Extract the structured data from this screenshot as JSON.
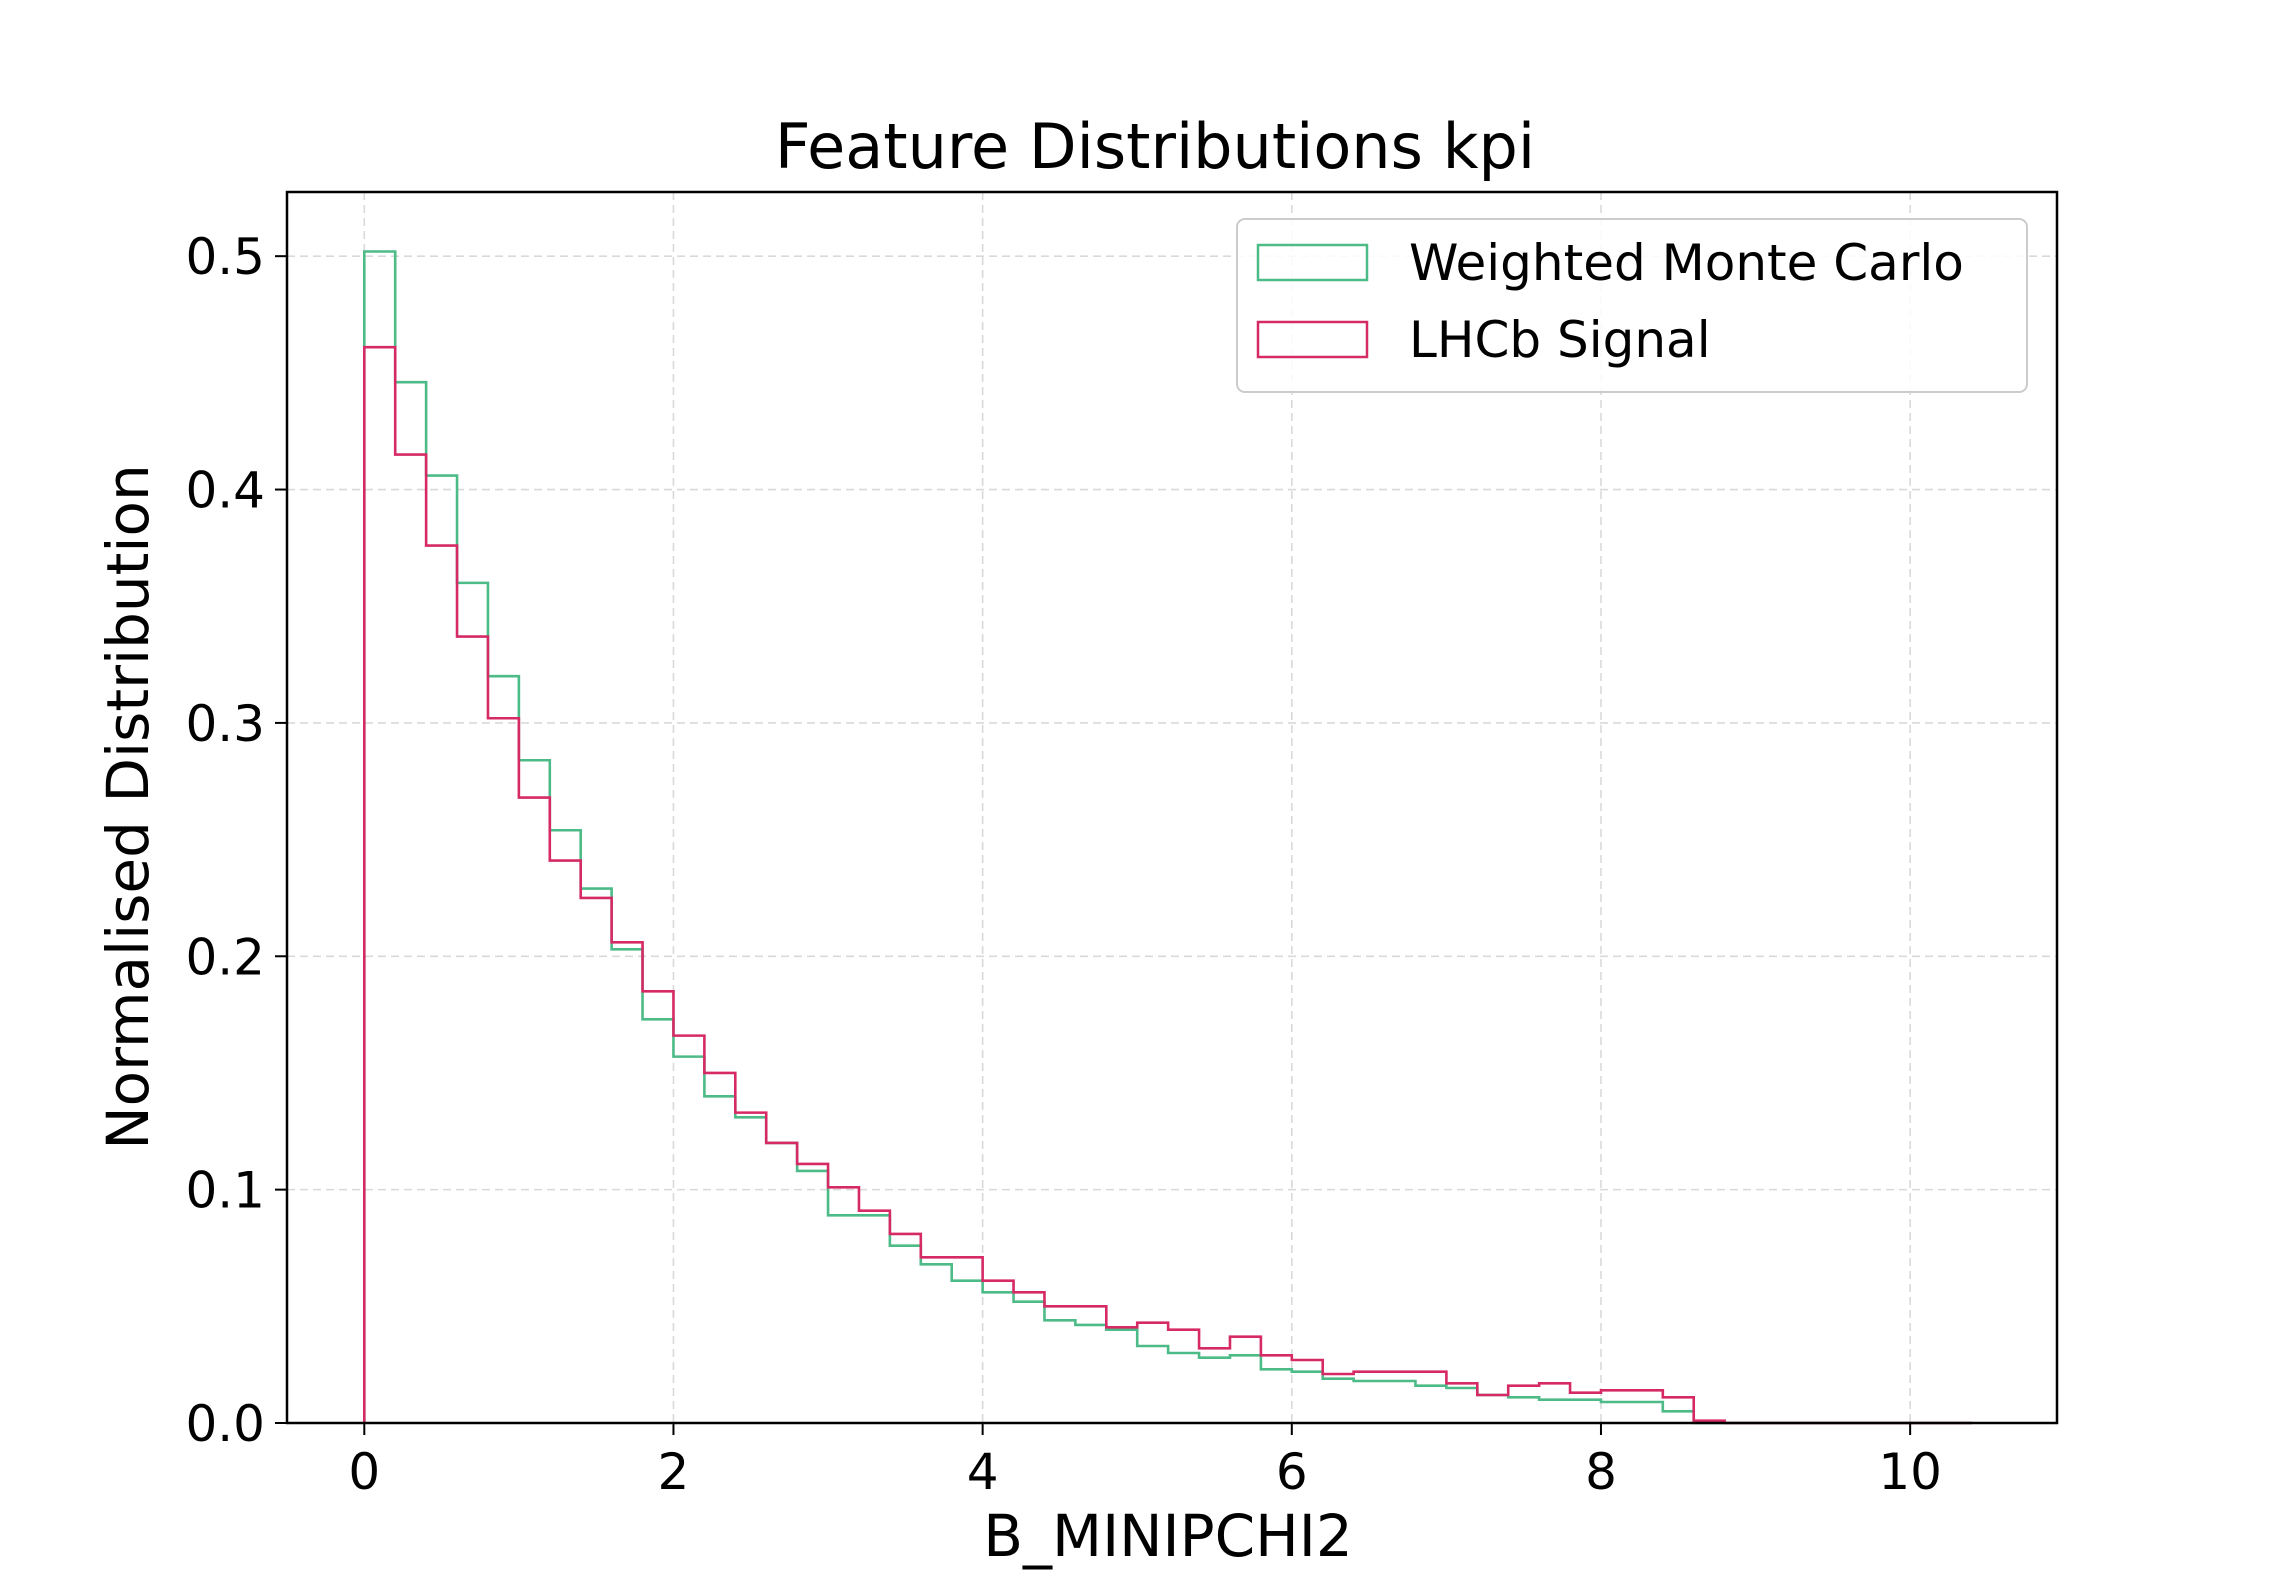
{
  "chart_data": {
    "type": "histogram",
    "title": "Feature Distributions kpi",
    "xlabel": "B_MINIPCHI2",
    "ylabel": "Normalised Distribution",
    "xlim": [
      -0.5,
      10.95
    ],
    "ylim": [
      0,
      0.5275
    ],
    "x_ticks": [
      0,
      2,
      4,
      6,
      8,
      10
    ],
    "x_tick_labels": [
      "0",
      "2",
      "4",
      "6",
      "8",
      "10"
    ],
    "y_ticks": [
      0.0,
      0.1,
      0.2,
      0.3,
      0.4,
      0.5
    ],
    "y_tick_labels": [
      "0.0",
      "0.1",
      "0.2",
      "0.3",
      "0.4",
      "0.5"
    ],
    "grid": true,
    "legend_position": "top-right",
    "bin_start": 0,
    "bin_width": 0.2,
    "series": [
      {
        "name": "Weighted Monte Carlo",
        "color": "#4dbb87",
        "values": [
          0.502,
          0.446,
          0.406,
          0.36,
          0.32,
          0.284,
          0.254,
          0.229,
          0.203,
          0.173,
          0.157,
          0.14,
          0.131,
          0.12,
          0.108,
          0.089,
          0.089,
          0.076,
          0.068,
          0.061,
          0.056,
          0.052,
          0.044,
          0.042,
          0.04,
          0.033,
          0.03,
          0.028,
          0.029,
          0.023,
          0.022,
          0.019,
          0.018,
          0.018,
          0.016,
          0.015,
          0.012,
          0.011,
          0.01,
          0.01,
          0.009,
          0.009,
          0.005,
          0.0,
          0.0,
          0.0,
          0.0,
          0.0,
          0.0,
          0.0,
          0.0,
          0.0
        ]
      },
      {
        "name": "LHCb Signal",
        "color": "#d62a66",
        "values": [
          0.461,
          0.415,
          0.376,
          0.337,
          0.302,
          0.268,
          0.241,
          0.225,
          0.206,
          0.185,
          0.166,
          0.15,
          0.133,
          0.12,
          0.111,
          0.101,
          0.091,
          0.081,
          0.071,
          0.071,
          0.061,
          0.056,
          0.05,
          0.05,
          0.041,
          0.043,
          0.04,
          0.032,
          0.037,
          0.029,
          0.027,
          0.021,
          0.022,
          0.022,
          0.022,
          0.017,
          0.012,
          0.016,
          0.017,
          0.013,
          0.014,
          0.014,
          0.011,
          0.001,
          0.0,
          0.0,
          0.0,
          0.0,
          0.0,
          0.0,
          0.0,
          0.0
        ]
      }
    ]
  }
}
